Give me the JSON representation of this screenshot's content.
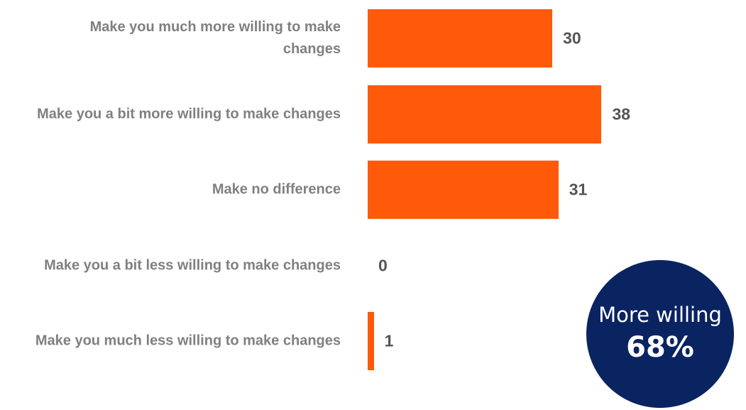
{
  "chart_data": {
    "type": "bar",
    "orientation": "horizontal",
    "categories": [
      "Make you much more willing to make changes",
      "Make you a bit more willing to make changes",
      "Make no difference",
      "Make you a bit less willing to make changes",
      "Make you much less willing to make changes"
    ],
    "values": [
      30,
      38,
      31,
      0,
      1
    ],
    "color": "#ff5a0a",
    "annotation": {
      "label": "More willing",
      "value": 68,
      "value_label": "68%",
      "color": "#0a2361"
    }
  }
}
